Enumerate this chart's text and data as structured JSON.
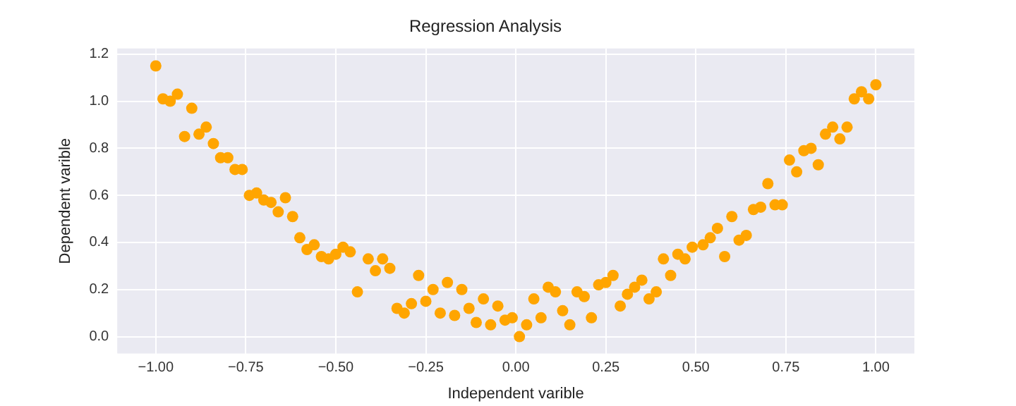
{
  "chart_data": {
    "type": "scatter",
    "title": "Regression Analysis",
    "xlabel": "Independent varible",
    "ylabel": "Dependent varible",
    "x": [
      -1.0,
      -0.98,
      -0.96,
      -0.94,
      -0.92,
      -0.9,
      -0.88,
      -0.86,
      -0.84,
      -0.82,
      -0.8,
      -0.78,
      -0.76,
      -0.74,
      -0.72,
      -0.7,
      -0.68,
      -0.66,
      -0.64,
      -0.62,
      -0.6,
      -0.58,
      -0.56,
      -0.54,
      -0.52,
      -0.5,
      -0.48,
      -0.46,
      -0.44,
      -0.41,
      -0.39,
      -0.37,
      -0.35,
      -0.33,
      -0.31,
      -0.29,
      -0.27,
      -0.25,
      -0.23,
      -0.21,
      -0.19,
      -0.17,
      -0.15,
      -0.13,
      -0.11,
      -0.09,
      -0.07,
      -0.05,
      -0.03,
      -0.01,
      0.01,
      0.03,
      0.05,
      0.07,
      0.09,
      0.11,
      0.13,
      0.15,
      0.17,
      0.19,
      0.21,
      0.23,
      0.25,
      0.27,
      0.29,
      0.31,
      0.33,
      0.35,
      0.37,
      0.39,
      0.41,
      0.43,
      0.45,
      0.47,
      0.49,
      0.52,
      0.54,
      0.56,
      0.58,
      0.6,
      0.62,
      0.64,
      0.66,
      0.68,
      0.7,
      0.72,
      0.74,
      0.76,
      0.78,
      0.8,
      0.82,
      0.84,
      0.86,
      0.88,
      0.9,
      0.92,
      0.94,
      0.96,
      0.98,
      1.0
    ],
    "series": [
      {
        "color": "#ffa500",
        "values": [
          1.15,
          1.01,
          1.0,
          1.03,
          0.85,
          0.97,
          0.86,
          0.89,
          0.82,
          0.76,
          0.76,
          0.71,
          0.71,
          0.6,
          0.61,
          0.58,
          0.57,
          0.53,
          0.59,
          0.51,
          0.42,
          0.37,
          0.39,
          0.34,
          0.33,
          0.35,
          0.38,
          0.36,
          0.19,
          0.33,
          0.28,
          0.33,
          0.29,
          0.12,
          0.1,
          0.14,
          0.26,
          0.15,
          0.2,
          0.1,
          0.23,
          0.09,
          0.2,
          0.12,
          0.06,
          0.16,
          0.05,
          0.13,
          0.07,
          0.08,
          0.0,
          0.05,
          0.16,
          0.08,
          0.21,
          0.19,
          0.11,
          0.05,
          0.19,
          0.17,
          0.08,
          0.22,
          0.23,
          0.26,
          0.13,
          0.18,
          0.21,
          0.24,
          0.16,
          0.19,
          0.33,
          0.26,
          0.35,
          0.33,
          0.38,
          0.39,
          0.42,
          0.46,
          0.34,
          0.51,
          0.41,
          0.43,
          0.54,
          0.55,
          0.65,
          0.56,
          0.56,
          0.75,
          0.7,
          0.79,
          0.8,
          0.73,
          0.86,
          0.89,
          0.84,
          0.89,
          1.01,
          1.04,
          1.01,
          1.07
        ]
      }
    ],
    "xlim": [
      -1.107,
      1.107
    ],
    "ylim": [
      -0.072,
      1.224
    ],
    "xticks": [
      {
        "value": -1,
        "label": "−1.00"
      },
      {
        "value": -0.75,
        "label": "−0.75"
      },
      {
        "value": -0.5,
        "label": "−0.50"
      },
      {
        "value": -0.25,
        "label": "−0.25"
      },
      {
        "value": 0,
        "label": "0.00"
      },
      {
        "value": 0.25,
        "label": "0.25"
      },
      {
        "value": 0.5,
        "label": "0.50"
      },
      {
        "value": 0.75,
        "label": "0.75"
      },
      {
        "value": 1,
        "label": "1.00"
      }
    ],
    "yticks": [
      {
        "value": 0,
        "label": "0.0"
      },
      {
        "value": 0.2,
        "label": "0.2"
      },
      {
        "value": 0.4,
        "label": "0.4"
      },
      {
        "value": 0.6,
        "label": "0.6"
      },
      {
        "value": 0.8,
        "label": "0.8"
      },
      {
        "value": 1,
        "label": "1.0"
      },
      {
        "value": 1.2,
        "label": "1.2"
      }
    ],
    "grid": true,
    "marker": "circle"
  }
}
